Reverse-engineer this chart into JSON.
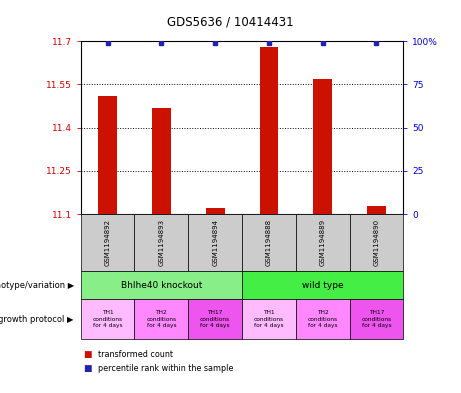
{
  "title": "GDS5636 / 10414431",
  "samples": [
    "GSM1194892",
    "GSM1194893",
    "GSM1194894",
    "GSM1194888",
    "GSM1194889",
    "GSM1194890"
  ],
  "bar_values": [
    11.51,
    11.47,
    11.12,
    11.68,
    11.57,
    11.13
  ],
  "ylim_left": [
    11.1,
    11.7
  ],
  "yticks_left": [
    11.1,
    11.25,
    11.4,
    11.55,
    11.7
  ],
  "ytick_labels_left": [
    "11.1",
    "11.25",
    "11.4",
    "11.55",
    "11.7"
  ],
  "yticks_right": [
    0,
    25,
    50,
    75,
    100
  ],
  "ytick_labels_right": [
    "0",
    "25",
    "50",
    "75",
    "100%"
  ],
  "bar_color": "#cc1100",
  "dot_color": "#2222aa",
  "genotype_groups": [
    {
      "label": "Bhlhe40 knockout",
      "color": "#88ee88",
      "start": 0,
      "end": 3
    },
    {
      "label": "wild type",
      "color": "#44ee44",
      "start": 3,
      "end": 6
    }
  ],
  "growth_protocol_colors": [
    "#ffbbff",
    "#ff88ff",
    "#ee55ee",
    "#ffbbff",
    "#ff88ff",
    "#ee55ee"
  ],
  "growth_protocol_labels": [
    "TH1\nconditions\nfor 4 days",
    "TH2\nconditions\nfor 4 days",
    "TH17\nconditions\nfor 4 days",
    "TH1\nconditions\nfor 4 days",
    "TH2\nconditions\nfor 4 days",
    "TH17\nconditions\nfor 4 days"
  ],
  "left_axis_color": "#cc0000",
  "right_axis_color": "#0000cc",
  "grid_color": "black",
  "sample_bg_color": "#cccccc"
}
